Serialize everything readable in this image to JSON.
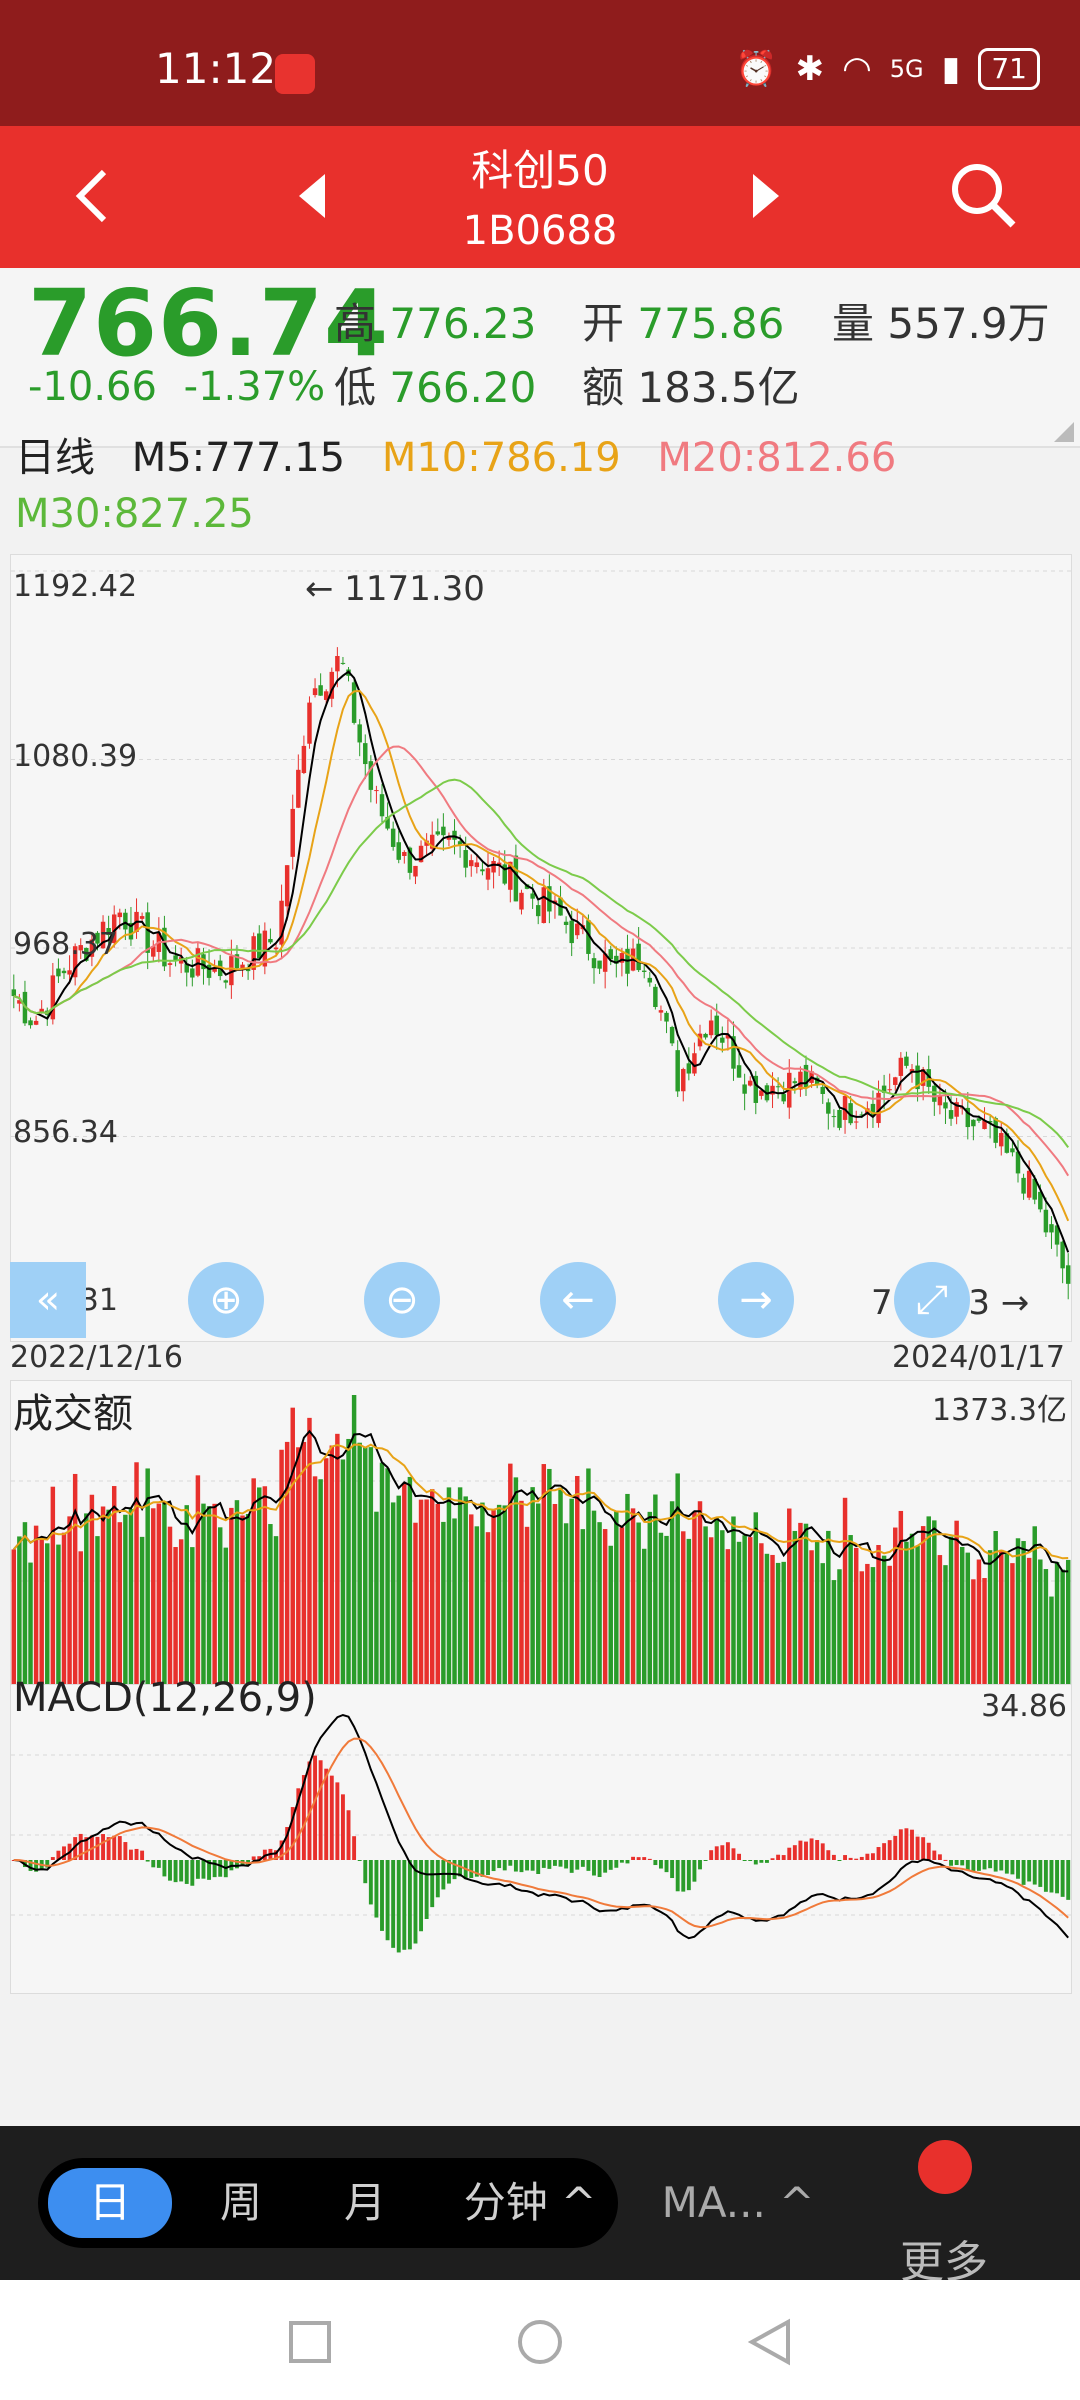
{
  "status_bar": {
    "time": "11:12",
    "network": "5G",
    "battery": "71"
  },
  "header": {
    "title": "科创50",
    "code": "1B0688"
  },
  "quote": {
    "price": "766.74",
    "change": "-10.66",
    "change_pct": "-1.37%",
    "high_label": "高",
    "high": "776.23",
    "low_label": "低",
    "low": "766.20",
    "open_label": "开",
    "open": "775.86",
    "amount_label": "额",
    "amount": "183.5亿",
    "volume_label": "量",
    "volume": "557.9万"
  },
  "ma_legend": {
    "period": "日线",
    "m5": "M5:777.15",
    "m10": "M10:786.19",
    "m20": "M20:812.66",
    "m30": "M30:827.25"
  },
  "colors": {
    "up": "#e8302c",
    "down": "#2a9c2a",
    "m5": "#000000",
    "m10": "#e8a317",
    "m20": "#f07a80",
    "m30": "#7ccb4a"
  },
  "kline": {
    "y_ticks": [
      "1192.42",
      "1080.39",
      "968.37",
      "856.34",
      "744.31"
    ],
    "max_label": "1171.30",
    "min_label": "765.43",
    "start_date": "2022/12/16",
    "end_date": "2024/01/17"
  },
  "volume_panel": {
    "title": "成交额",
    "max": "1373.3亿"
  },
  "macd_panel": {
    "title": "MACD(12,26,9)",
    "max": "34.86"
  },
  "bottom_tabs": {
    "day": "日",
    "week": "周",
    "month": "月",
    "minute": "分钟 ^",
    "ma": "MA... ^",
    "more": "更多"
  }
}
